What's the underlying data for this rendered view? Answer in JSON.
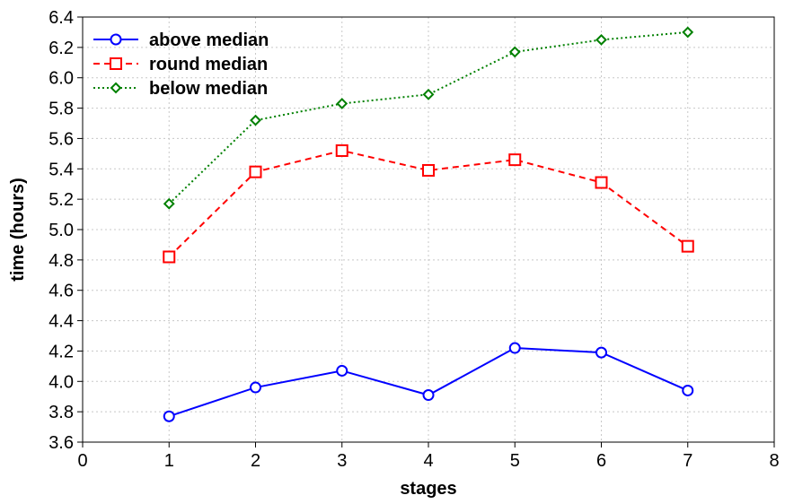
{
  "chart_data": {
    "type": "line",
    "title": "",
    "xlabel": "stages",
    "ylabel": "time (hours)",
    "xlim": [
      0,
      8
    ],
    "ylim": [
      3.6,
      6.4
    ],
    "xticks": [
      0,
      1,
      2,
      3,
      4,
      5,
      6,
      7,
      8
    ],
    "yticks": [
      3.6,
      3.8,
      4.0,
      4.2,
      4.4,
      4.6,
      4.8,
      5.0,
      5.2,
      5.4,
      5.6,
      5.8,
      6.0,
      6.2,
      6.4
    ],
    "grid": true,
    "legend_position": "top-left",
    "x": [
      1,
      2,
      3,
      4,
      5,
      6,
      7
    ],
    "series": [
      {
        "name": "above median",
        "values": [
          3.77,
          3.96,
          4.07,
          3.91,
          4.22,
          4.19,
          3.94
        ],
        "color": "#0000ff",
        "marker": "circle",
        "line_style": "solid"
      },
      {
        "name": "round median",
        "values": [
          4.82,
          5.38,
          5.52,
          5.39,
          5.46,
          5.31,
          4.89
        ],
        "color": "#ff0000",
        "marker": "square",
        "line_style": "dashed"
      },
      {
        "name": "below median",
        "values": [
          5.17,
          5.72,
          5.83,
          5.89,
          6.17,
          6.25,
          6.3
        ],
        "color": "#008000",
        "marker": "diamond",
        "line_style": "dotted"
      }
    ]
  }
}
